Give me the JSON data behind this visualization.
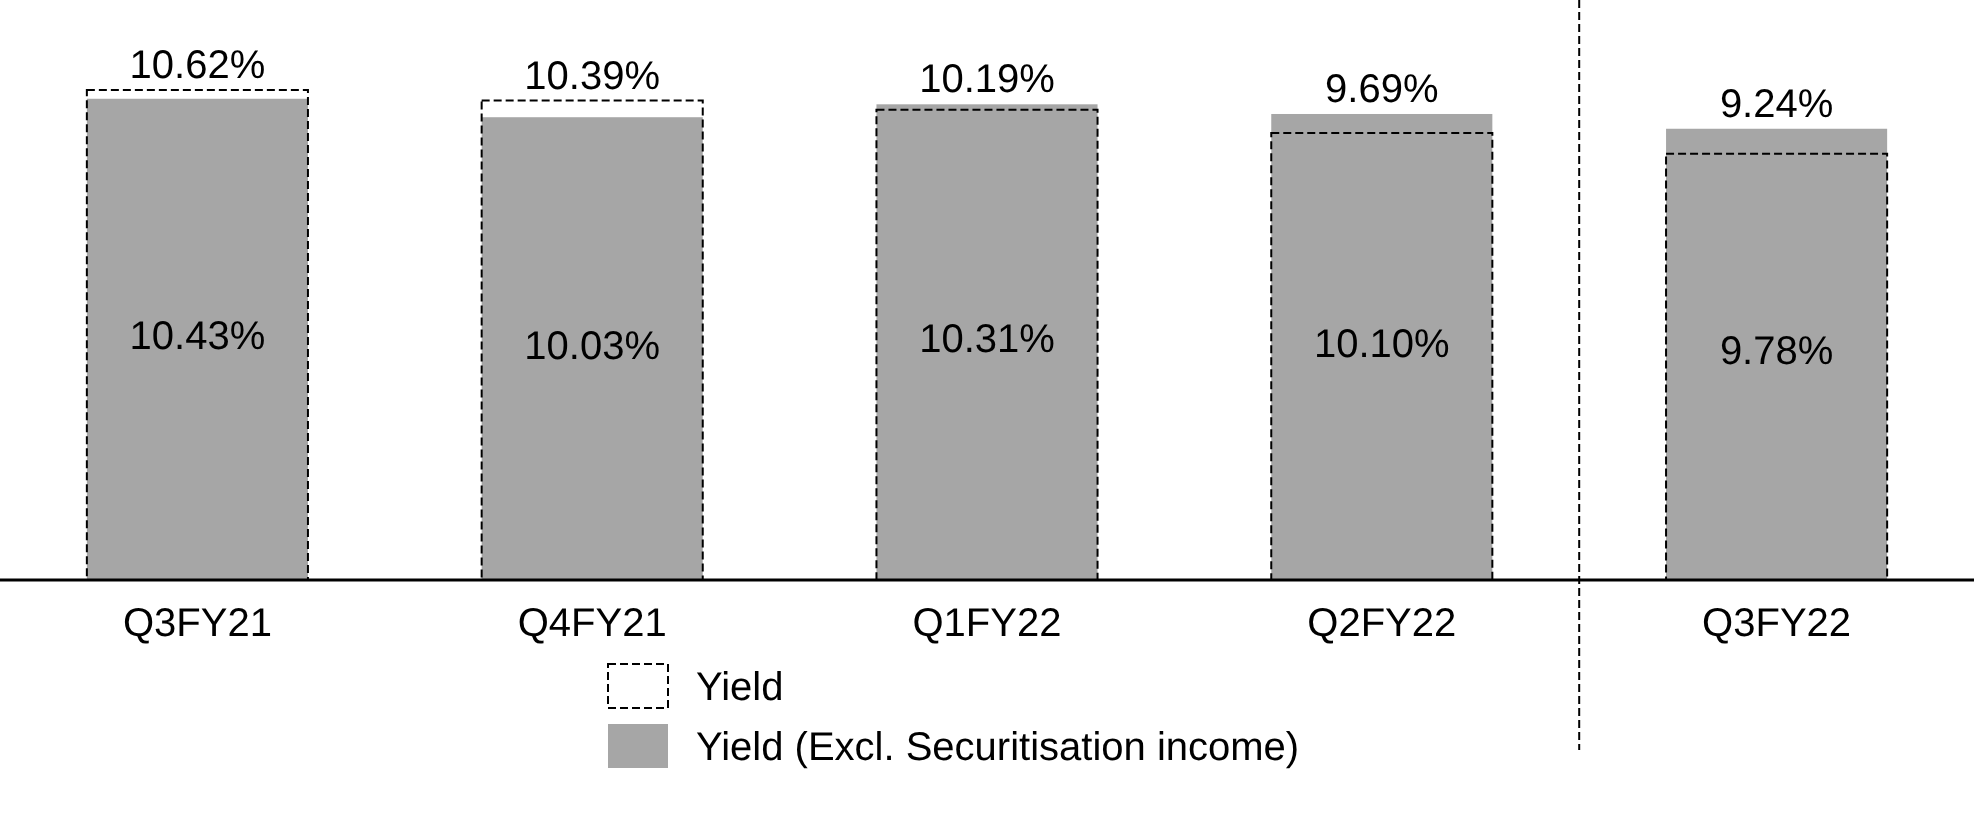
{
  "chart_data": {
    "type": "bar",
    "categories": [
      "Q3FY21",
      "Q4FY21",
      "Q1FY22",
      "Q2FY22",
      "Q3FY22"
    ],
    "series": [
      {
        "name": "Yield (Excl. Securitisation income)",
        "color": "#a6a6a6",
        "values": [
          10.43,
          10.03,
          10.31,
          10.1,
          9.78
        ],
        "value_labels": [
          "10.43%",
          "10.03%",
          "10.31%",
          "10.10%",
          "9.78%"
        ]
      },
      {
        "name": "Yield",
        "color": "#000000",
        "line_style": "dashed",
        "values": [
          10.62,
          10.39,
          10.19,
          9.69,
          9.24
        ],
        "value_labels": [
          "10.62%",
          "10.39%",
          "10.19%",
          "9.69%",
          "9.24%"
        ]
      }
    ],
    "legend": "bottom"
  }
}
